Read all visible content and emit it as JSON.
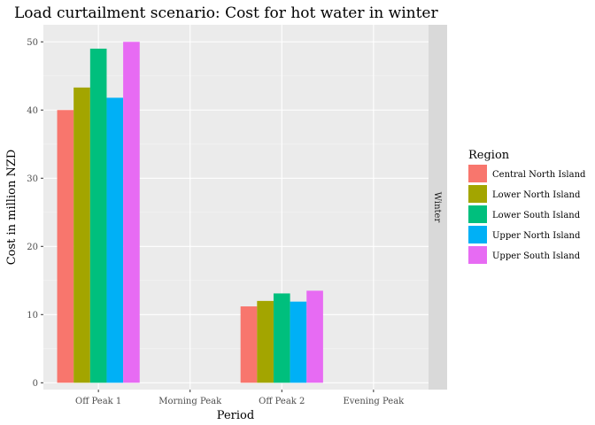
{
  "chart_data": {
    "type": "bar",
    "title": "Load curtailment scenario: Cost for hot water in winter",
    "xlabel": "Period",
    "ylabel": "Cost in million NZD",
    "categories": [
      "Off Peak 1",
      "Morning Peak",
      "Off Peak 2",
      "Evening Peak"
    ],
    "yticks": [
      0,
      10,
      20,
      30,
      40,
      50
    ],
    "ylim": [
      -1,
      52.5
    ],
    "facet_label": "Winter",
    "legend": {
      "title": "Region",
      "placement": "right"
    },
    "grid": true,
    "series": [
      {
        "name": "Central North Island",
        "color": "#F8766D",
        "values": [
          40.0,
          0,
          11.2,
          0
        ]
      },
      {
        "name": "Lower North Island",
        "color": "#A3A500",
        "values": [
          43.3,
          0,
          12.0,
          0
        ]
      },
      {
        "name": "Lower South Island",
        "color": "#00BF7D",
        "values": [
          49.0,
          0,
          13.1,
          0
        ]
      },
      {
        "name": "Upper North Island",
        "color": "#00B0F6",
        "values": [
          41.8,
          0,
          11.9,
          0
        ]
      },
      {
        "name": "Upper South Island",
        "color": "#E76BF3",
        "values": [
          50.0,
          0,
          13.5,
          0
        ]
      }
    ]
  }
}
